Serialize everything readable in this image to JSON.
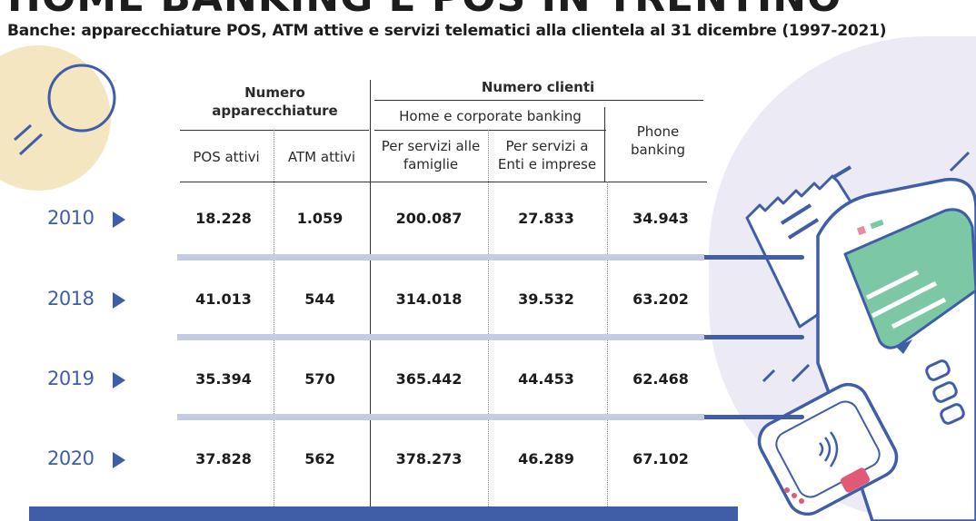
{
  "title": "HOME BANKING E POS IN TRENTINO",
  "subtitle": "Banche: apparecchiature POS, ATM attive e servizi telematici alla clientela al  31 dicembre (1997-2021)",
  "colors": {
    "accent": "#3f5ea7",
    "gold": "#f3e6c1",
    "green": "#7cc8a4",
    "band": "#c5cbe3"
  },
  "headers": {
    "group1": "Numero apparecchiature",
    "group2": "Numero clienti",
    "subgroup": "Home e corporate banking",
    "col_pos": "POS attivi",
    "col_atm": "ATM attivi",
    "col_fam": "Per servizi alle famiglie",
    "col_ent": "Per servizi a Enti e imprese",
    "col_phone": "Phone banking"
  },
  "chart_data": {
    "type": "table",
    "columns": [
      "POS attivi",
      "ATM attivi",
      "Per servizi alle famiglie",
      "Per servizi a Enti e imprese",
      "Phone banking"
    ],
    "rows": [
      {
        "year": "2010",
        "cells": [
          "18.228",
          "1.059",
          "200.087",
          "27.833",
          "34.943"
        ]
      },
      {
        "year": "2018",
        "cells": [
          "41.013",
          "544",
          "314.018",
          "39.532",
          "63.202"
        ]
      },
      {
        "year": "2019",
        "cells": [
          "35.394",
          "570",
          "365.442",
          "44.453",
          "62.468"
        ]
      },
      {
        "year": "2020",
        "cells": [
          "37.828",
          "562",
          "378.273",
          "46.289",
          "67.102"
        ]
      }
    ]
  }
}
